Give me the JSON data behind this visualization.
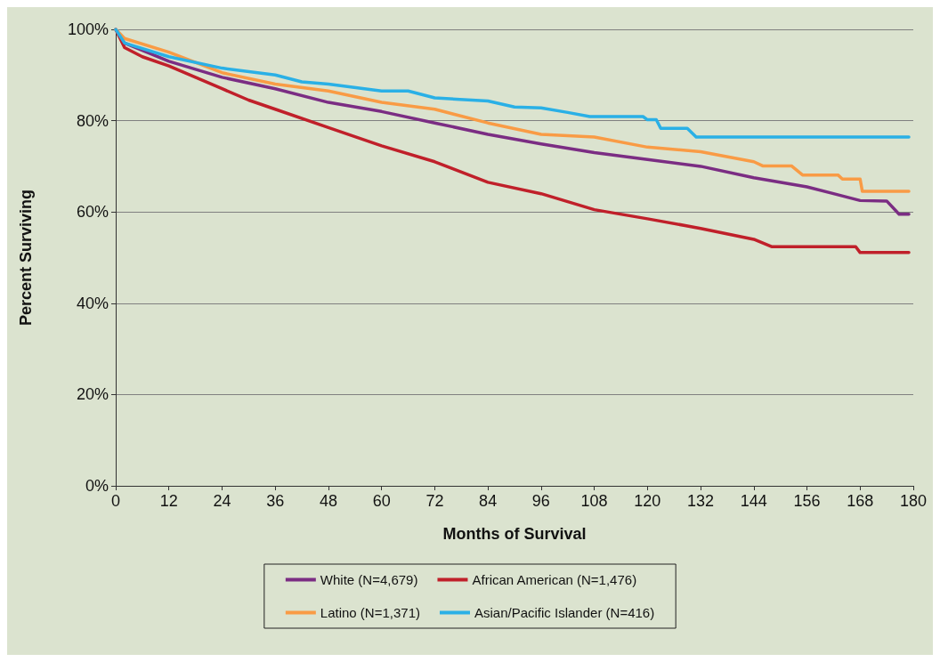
{
  "chart_data": {
    "type": "line",
    "xlabel": "Months of Survival",
    "ylabel": "Percent Surviving",
    "xlim": [
      0,
      180
    ],
    "xticks": [
      0,
      12,
      24,
      36,
      48,
      60,
      72,
      84,
      96,
      108,
      120,
      132,
      144,
      156,
      168,
      180
    ],
    "ylim": [
      0,
      100
    ],
    "yticks": [
      {
        "value": 0,
        "label": "0%"
      },
      {
        "value": 20,
        "label": "20%"
      },
      {
        "value": 40,
        "label": "40%"
      },
      {
        "value": 60,
        "label": "60%"
      },
      {
        "value": 80,
        "label": "80%"
      },
      {
        "value": 100,
        "label": "100%"
      }
    ],
    "grid": "y",
    "legend": "bottom",
    "marker": "none",
    "line_style": "solid",
    "series": [
      {
        "name": "White (N=4,679)",
        "color": "#7b2d83",
        "x": [
          0,
          2,
          12,
          24,
          36,
          48,
          60,
          72,
          84,
          96,
          108,
          120,
          132,
          144,
          156,
          162,
          168,
          174,
          176.8,
          179
        ],
        "values": [
          100,
          97,
          93,
          89.5,
          87,
          84,
          82,
          79.5,
          77,
          74.9,
          73,
          71.5,
          70,
          67.5,
          65.5,
          64,
          62.5,
          62.4,
          59.5,
          59.5
        ]
      },
      {
        "name": "African American (N=1,476)",
        "color": "#c0202a",
        "x": [
          0,
          2,
          6,
          12,
          18,
          24,
          30,
          36,
          48,
          60,
          72,
          84,
          96,
          108,
          120,
          132,
          144,
          148,
          167,
          168,
          179
        ],
        "values": [
          100,
          96,
          94,
          92,
          89.5,
          87,
          84.5,
          82.5,
          78.5,
          74.5,
          71,
          66.5,
          64,
          60.5,
          58.5,
          56.4,
          54,
          52.4,
          52.4,
          51.1,
          51.1
        ]
      },
      {
        "name": "Latino (N=1,371)",
        "color": "#f99b45",
        "x": [
          0,
          2,
          12,
          24,
          36,
          48,
          60,
          72,
          84,
          96,
          108,
          120,
          132,
          144,
          146,
          152.5,
          155,
          163,
          164,
          168,
          168.5,
          179
        ],
        "values": [
          100,
          98,
          95,
          90.5,
          88,
          86.5,
          84,
          82.5,
          79.5,
          77,
          76.4,
          74.2,
          73.2,
          71,
          70.1,
          70.1,
          68.1,
          68.1,
          67.2,
          67.2,
          64.5,
          64.5
        ]
      },
      {
        "name": "Asian/Pacific Islander (N=416)",
        "color": "#2ab0e6",
        "x": [
          0,
          2,
          12,
          24,
          36,
          42,
          48,
          60,
          66,
          72,
          84,
          90,
          96,
          102,
          107,
          119,
          120,
          122,
          123,
          129,
          131,
          179
        ],
        "values": [
          100,
          97,
          94,
          91.5,
          90,
          88.5,
          88,
          86.5,
          86.5,
          85,
          84.3,
          83,
          82.8,
          81.8,
          80.9,
          80.9,
          80.2,
          80.2,
          78.3,
          78.3,
          76.4,
          76.4
        ]
      }
    ]
  }
}
